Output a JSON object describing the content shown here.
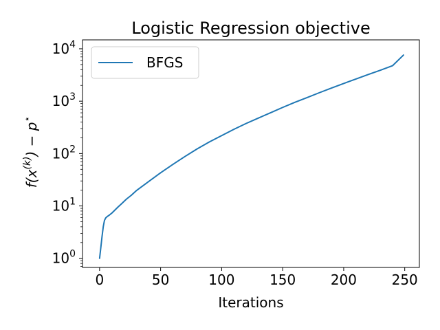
{
  "chart_data": {
    "type": "line",
    "title": "Logistic Regression objective",
    "xlabel": "Iterations",
    "ylabel": "f(x(k)) − p⋆",
    "ylabel_parts": {
      "base": "f(x",
      "sup": "(k)",
      "tail": ") − p",
      "star": "⋆"
    },
    "yscale": "log",
    "xlim": [
      -14,
      262
    ],
    "ylim": [
      0.67,
      14800
    ],
    "xticks": [
      0,
      50,
      100,
      150,
      200,
      250
    ],
    "yticks": [
      {
        "value": 1,
        "base": "10",
        "exp": "0"
      },
      {
        "value": 10,
        "base": "10",
        "exp": "1"
      },
      {
        "value": 100,
        "base": "10",
        "exp": "2"
      },
      {
        "value": 1000,
        "base": "10",
        "exp": "3"
      },
      {
        "value": 10000,
        "base": "10",
        "exp": "4"
      }
    ],
    "grid": false,
    "legend_position": "top-left",
    "series": [
      {
        "name": "BFGS",
        "color": "#1f77b4",
        "x": [
          0,
          1,
          2,
          3,
          4,
          5,
          6,
          8,
          10,
          12,
          15,
          18,
          22,
          26,
          30,
          40,
          50,
          60,
          70,
          80,
          90,
          100,
          110,
          120,
          130,
          140,
          150,
          160,
          170,
          180,
          190,
          200,
          210,
          220,
          230,
          240,
          249
        ],
        "y": [
          1,
          1.6,
          2.6,
          4.0,
          5.3,
          5.9,
          6.2,
          6.7,
          7.3,
          8.1,
          9.5,
          11.0,
          13.5,
          16.0,
          19.5,
          29,
          43,
          62,
          88,
          123,
          167,
          220,
          290,
          375,
          475,
          600,
          760,
          950,
          1170,
          1450,
          1780,
          2180,
          2650,
          3220,
          3900,
          4750,
          7600
        ]
      }
    ]
  }
}
